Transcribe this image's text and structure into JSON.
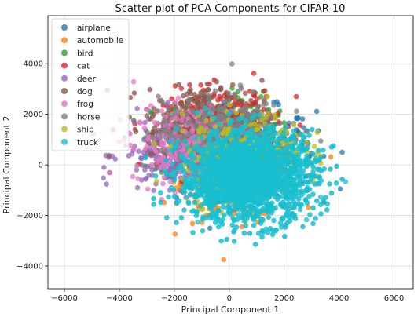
{
  "chart_data": {
    "type": "scatter",
    "title": "Scatter plot of PCA Components for CIFAR-10",
    "xlabel": "Principal Component 1",
    "ylabel": "Principal Component 2",
    "xlim": [
      -6600,
      6700
    ],
    "ylim": [
      -4900,
      5900
    ],
    "xticks": [
      -6000,
      -4000,
      -2000,
      0,
      2000,
      4000,
      6000
    ],
    "yticks": [
      -4000,
      -2000,
      0,
      2000,
      4000
    ],
    "xtick_labels": [
      "−6000",
      "−4000",
      "−2000",
      "0",
      "2000",
      "4000",
      "6000"
    ],
    "ytick_labels": [
      "−4000",
      "−2000",
      "0",
      "2000",
      "4000"
    ],
    "grid": true,
    "legend_position": "top-left",
    "series": [
      {
        "name": "airplane",
        "color": "#1f77b4"
      },
      {
        "name": "automobile",
        "color": "#ff7f0e"
      },
      {
        "name": "bird",
        "color": "#2ca02c"
      },
      {
        "name": "cat",
        "color": "#d62728"
      },
      {
        "name": "deer",
        "color": "#9467bd"
      },
      {
        "name": "dog",
        "color": "#8c564b"
      },
      {
        "name": "frog",
        "color": "#e377c2"
      },
      {
        "name": "horse",
        "color": "#7f7f7f"
      },
      {
        "name": "ship",
        "color": "#bcbd22"
      },
      {
        "name": "truck",
        "color": "#17becf"
      }
    ]
  }
}
